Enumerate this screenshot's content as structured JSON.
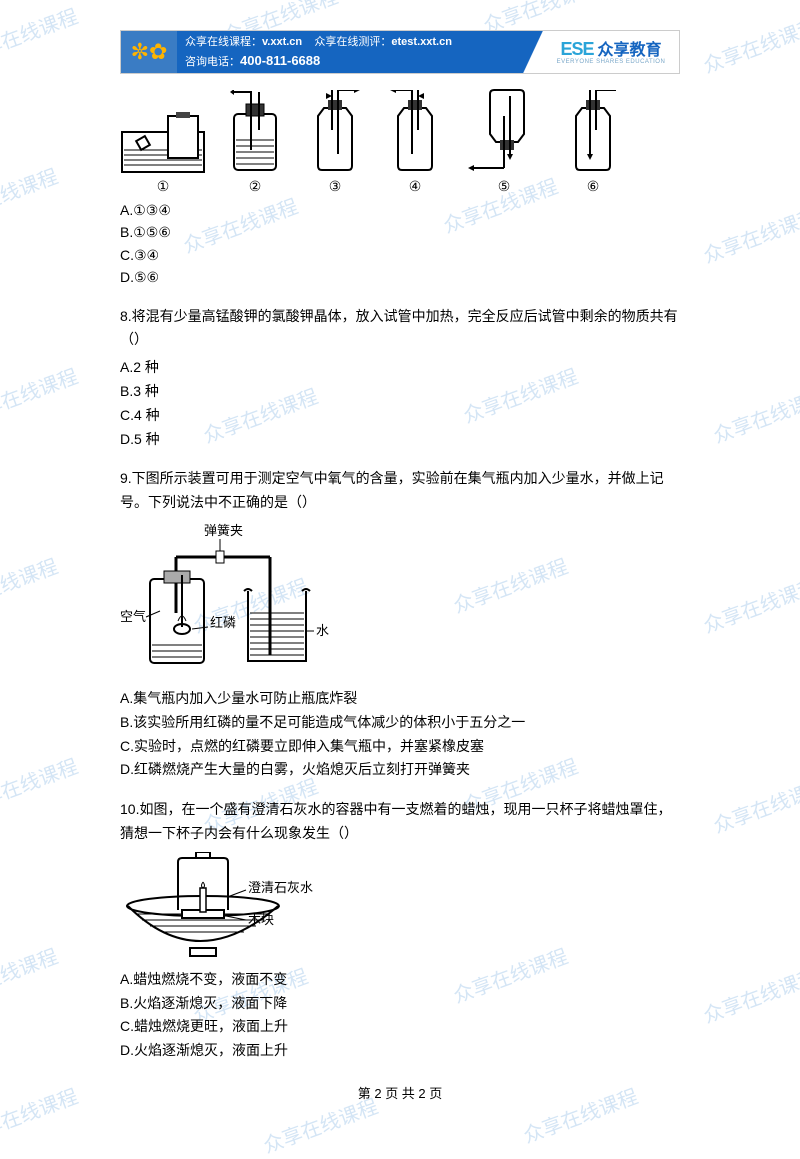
{
  "watermark_text": "众享在线课程",
  "banner": {
    "line1_a": "众享在线课程：",
    "line1_b": "v.xxt.cn",
    "line1_c": "众享在线测评：",
    "line1_d": "etest.xxt.cn",
    "line2_a": "咨询电话：",
    "line2_b": "400-811-6688",
    "logo_main": "ESE",
    "logo_cn": "众享教育",
    "logo_sub": "EVERYONE SHARES EDUCATION"
  },
  "device_labels": {
    "d1": "①",
    "d2": "②",
    "d3": "③",
    "d4": "④",
    "d5": "⑤",
    "d6": "⑥"
  },
  "q7": {
    "optA": "A.①③④",
    "optB": "B.①⑤⑥",
    "optC": "C.③④",
    "optD": "D.⑤⑥"
  },
  "q8": {
    "text": "8.将混有少量高锰酸钾的氯酸钾晶体，放入试管中加热，完全反应后试管中剩余的物质共有（）",
    "optA": "A.2 种",
    "optB": "B.3 种",
    "optC": "C.4 种",
    "optD": "D.5 种"
  },
  "q9": {
    "text": "9.下图所示装置可用于测定空气中氧气的含量，实验前在集气瓶内加入少量水，并做上记号。下列说法中不正确的是（）",
    "label_spring": "弹簧夹",
    "label_air": "空气",
    "label_phos": "红磷",
    "label_water": "水",
    "optA": "A.集气瓶内加入少量水可防止瓶底炸裂",
    "optB": "B.该实验所用红磷的量不足可能造成气体减少的体积小于五分之一",
    "optC": "C.实验时，点燃的红磷要立即伸入集气瓶中，并塞紧橡皮塞",
    "optD": "D.红磷燃烧产生大量的白雾，火焰熄灭后立刻打开弹簧夹"
  },
  "q10": {
    "text": "10.如图，在一个盛有澄清石灰水的容器中有一支燃着的蜡烛，现用一只杯子将蜡烛罩住，猜想一下杯子内会有什么现象发生（）",
    "label_lime": "澄清石灰水",
    "label_wood": "木块",
    "optA": "A.蜡烛燃烧不变，液面不变",
    "optB": "B.火焰逐渐熄灭，液面下降",
    "optC": "C.蜡烛燃烧更旺，液面上升",
    "optD": "D.火焰逐渐熄灭，液面上升"
  },
  "footer": "第 2 页 共 2 页"
}
